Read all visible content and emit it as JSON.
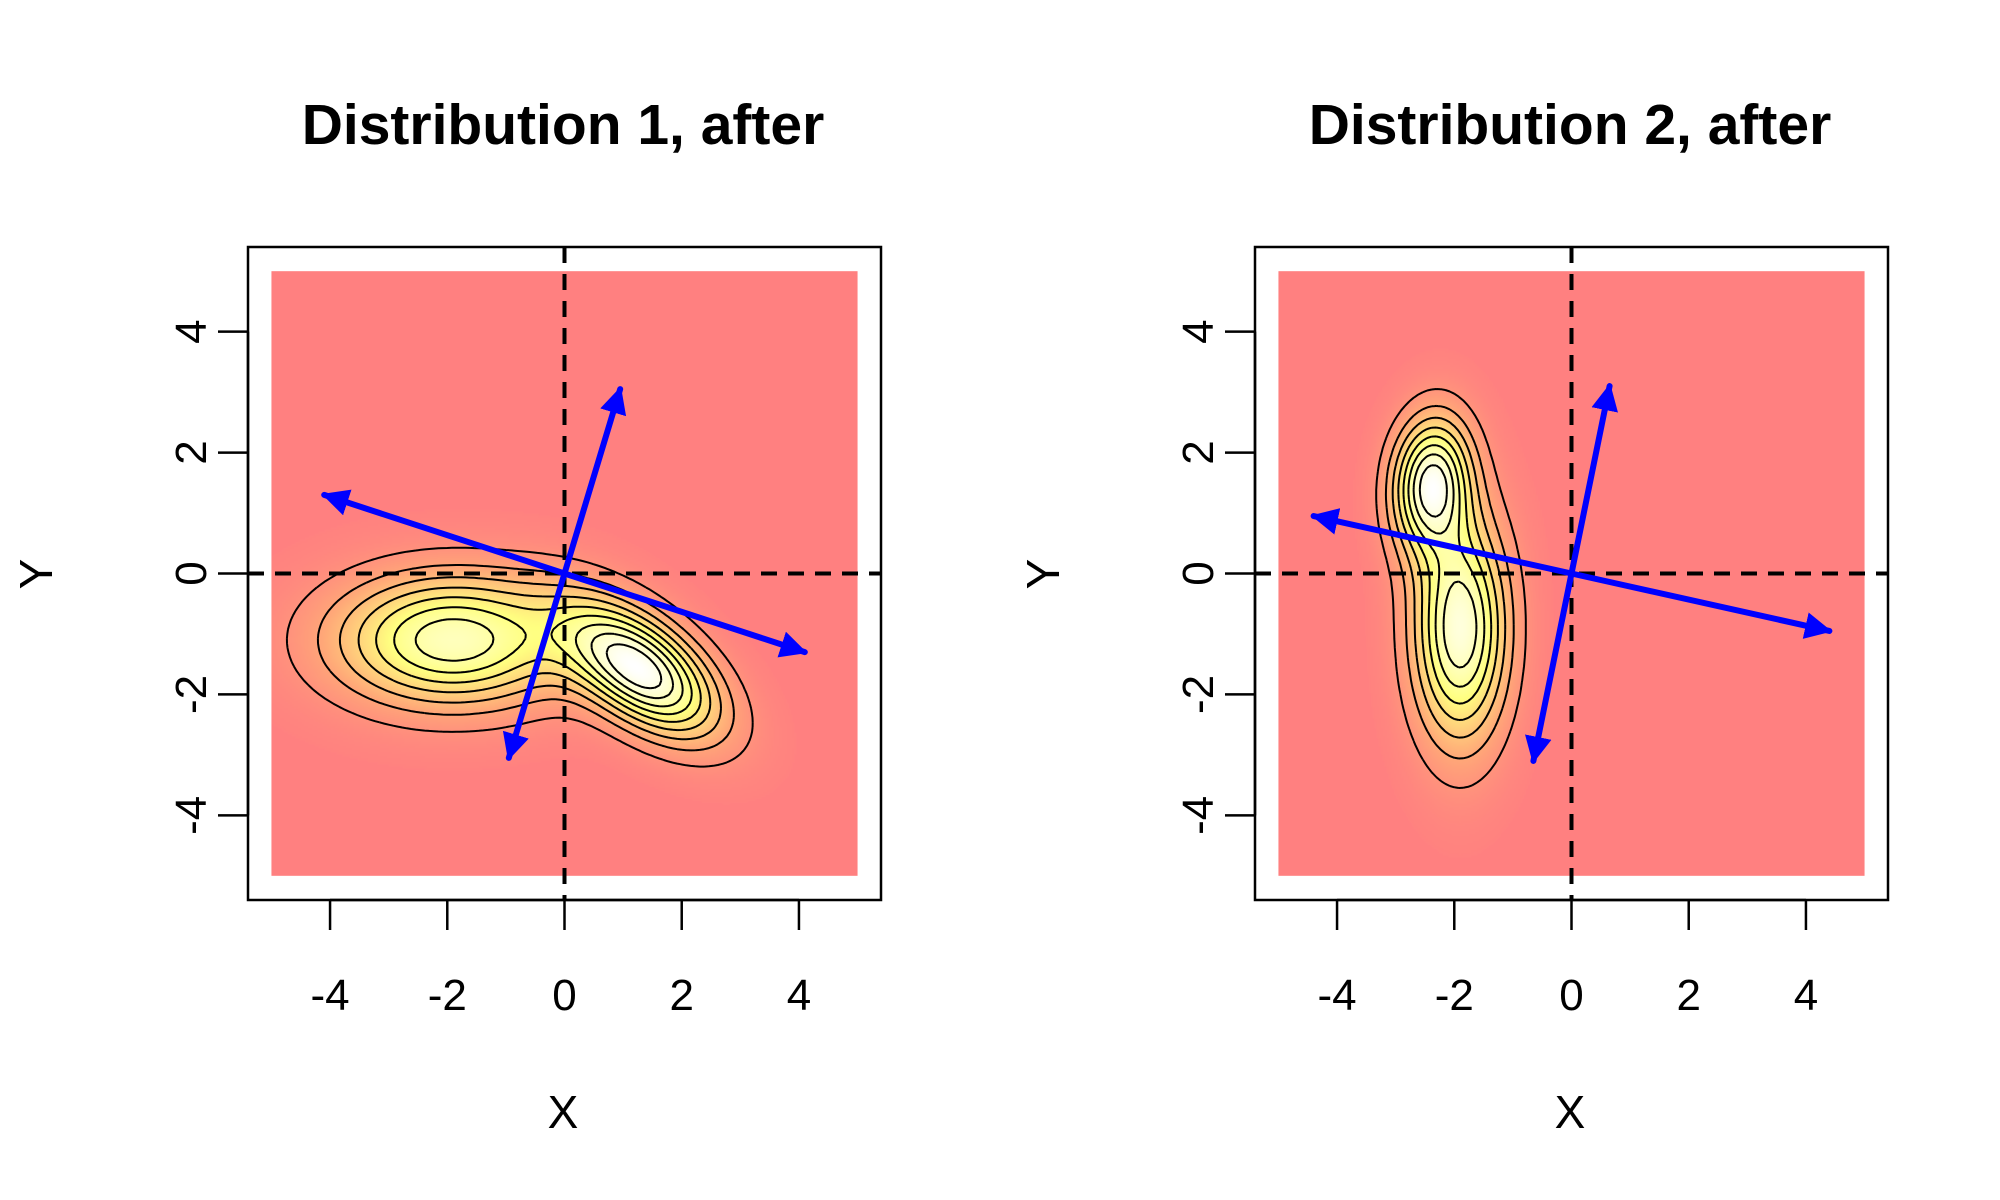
{
  "chart_data": [
    {
      "type": "contour",
      "title": "Distribution 1, after",
      "xlabel": "X",
      "ylabel": "Y",
      "xlim": [
        -5,
        5
      ],
      "ylim": [
        -5,
        5
      ],
      "xticks": [
        "-4",
        "-2",
        "0",
        "2",
        "4"
      ],
      "yticks": [
        "-4",
        "-2",
        "0",
        "2",
        "4"
      ],
      "reference_lines": {
        "x": 0,
        "y": 0,
        "style": "dashed"
      },
      "density_components": [
        {
          "cx": -1.9,
          "cy": -1.1,
          "sx": 1.4,
          "sy": 0.75,
          "rho": 0.0,
          "w": 0.45
        },
        {
          "cx": 1.3,
          "cy": -1.6,
          "sx": 0.9,
          "sy": 0.75,
          "rho": -0.55,
          "w": 0.55
        }
      ],
      "contour_levels": 9,
      "arrows": [
        {
          "from": [
            -0.95,
            -3.05
          ],
          "to": [
            0.95,
            3.05
          ]
        },
        {
          "from": [
            4.1,
            -1.3
          ],
          "to": [
            -4.1,
            1.3
          ]
        },
        {
          "from": [
            -4.1,
            1.3
          ],
          "to": [
            4.1,
            -1.3
          ]
        },
        {
          "from": [
            0.95,
            3.05
          ],
          "to": [
            -0.95,
            -3.05
          ]
        }
      ],
      "colors": {
        "background": "#ff8080",
        "peak": "#ffffff",
        "mid": "#ffff80",
        "arrows": "#0000ff",
        "contours": "#000000"
      }
    },
    {
      "type": "contour",
      "title": "Distribution 2, after",
      "xlabel": "X",
      "ylabel": "Y",
      "xlim": [
        -5,
        5
      ],
      "ylim": [
        -5,
        5
      ],
      "xticks": [
        "-4",
        "-2",
        "0",
        "2",
        "4"
      ],
      "yticks": [
        "-4",
        "-2",
        "0",
        "2",
        "4"
      ],
      "reference_lines": {
        "x": 0,
        "y": 0,
        "style": "dashed"
      },
      "density_components": [
        {
          "cx": -2.4,
          "cy": 1.5,
          "sx": 0.45,
          "sy": 0.75,
          "rho": 0.1,
          "w": 0.5
        },
        {
          "cx": -1.9,
          "cy": -0.9,
          "sx": 0.55,
          "sy": 1.3,
          "rho": 0.0,
          "w": 0.5
        }
      ],
      "contour_levels": 8,
      "arrows": [
        {
          "from": [
            -0.65,
            -3.1
          ],
          "to": [
            0.65,
            3.1
          ]
        },
        {
          "from": [
            4.4,
            -0.95
          ],
          "to": [
            -4.4,
            0.95
          ]
        },
        {
          "from": [
            -4.4,
            0.95
          ],
          "to": [
            4.4,
            -0.95
          ]
        },
        {
          "from": [
            0.65,
            3.1
          ],
          "to": [
            -0.65,
            -3.1
          ]
        }
      ],
      "colors": {
        "background": "#ff8080",
        "peak": "#ffffff",
        "mid": "#ffff80",
        "arrows": "#0000ff",
        "contours": "#000000"
      }
    }
  ]
}
